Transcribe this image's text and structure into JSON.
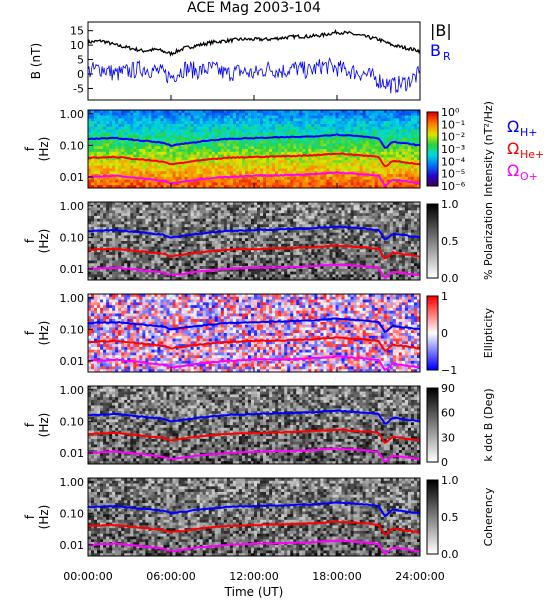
{
  "chart_data": {
    "title": "ACE Mag 2003-104",
    "xlabel": "Time (UT)",
    "x_tick_labels": [
      "00:00:00",
      "06:00:00",
      "12:00:00",
      "18:00:00",
      "24:00:00"
    ],
    "xlim_hours": [
      0,
      24
    ],
    "panels": [
      {
        "type": "line",
        "ylabel": "B (nT)",
        "ylim": [
          -9,
          18
        ],
        "y_ticks": [
          -5,
          0,
          5,
          10,
          15
        ],
        "series": [
          {
            "name": "|B|",
            "color": "#000000",
            "x_hours": [
              0,
              1,
              2,
              3,
              4,
              5,
              6,
              7,
              8,
              9,
              10,
              11,
              12,
              13,
              14,
              15,
              16,
              17,
              18,
              19,
              20,
              21,
              22,
              23,
              24
            ],
            "values": [
              11,
              11.5,
              10,
              9,
              8,
              8.5,
              7,
              9,
              10,
              11,
              11.5,
              12,
              12,
              12,
              12.5,
              13,
              13,
              13.5,
              14.5,
              14,
              13,
              12,
              10,
              9,
              8
            ]
          },
          {
            "name": "B_R",
            "color": "#0000ff",
            "x_hours": [
              0,
              1,
              2,
              3,
              4,
              5,
              6,
              7,
              8,
              9,
              10,
              11,
              12,
              13,
              14,
              15,
              16,
              17,
              18,
              19,
              20,
              21,
              22,
              23,
              24
            ],
            "values": [
              1,
              2,
              0,
              1,
              2,
              1,
              -1,
              2,
              1,
              2,
              0,
              1,
              0,
              2,
              1,
              2,
              1,
              3,
              2,
              1,
              0,
              -2,
              -4,
              -3,
              0
            ]
          }
        ]
      },
      {
        "type": "heatmap",
        "ylabel": "f (Hz)",
        "y_tick_labels": [
          "1.00",
          "0.10",
          "0.01"
        ],
        "colorbar_label": "Intensity (nT²/Hz)",
        "colorbar_ticks": [
          "10⁰",
          "10⁻¹",
          "10⁻²",
          "10⁻³",
          "10⁻⁴",
          "10⁻⁵",
          "10⁻⁶"
        ],
        "colorbar_range": [
          -6,
          0
        ],
        "colorscale": "rainbow"
      },
      {
        "type": "heatmap",
        "ylabel": "f (Hz)",
        "y_tick_labels": [
          "1.00",
          "0.10",
          "0.01"
        ],
        "colorbar_label": "% Polarization",
        "colorbar_ticks": [
          "1.0",
          "0.5",
          "0.0"
        ],
        "colorbar_range": [
          0,
          1
        ],
        "colorscale": "gray"
      },
      {
        "type": "heatmap",
        "ylabel": "f (Hz)",
        "y_tick_labels": [
          "1.00",
          "0.10",
          "0.01"
        ],
        "colorbar_label": "Ellipticity",
        "colorbar_ticks": [
          "1",
          "0",
          "−1"
        ],
        "colorbar_range": [
          -1,
          1
        ],
        "colorscale": "bluewhitered"
      },
      {
        "type": "heatmap",
        "ylabel": "f (Hz)",
        "y_tick_labels": [
          "1.00",
          "0.10",
          "0.01"
        ],
        "colorbar_label": "k dot B (Deg)",
        "colorbar_ticks": [
          "90",
          "60",
          "30",
          "0"
        ],
        "colorbar_range": [
          0,
          90
        ],
        "colorscale": "gray"
      },
      {
        "type": "heatmap",
        "ylabel": "f (Hz)",
        "y_tick_labels": [
          "1.00",
          "0.10",
          "0.01"
        ],
        "colorbar_label": "Coherency",
        "colorbar_ticks": [
          "1.0",
          "0.5",
          "0.0"
        ],
        "colorbar_range": [
          0,
          1
        ],
        "colorscale": "gray"
      }
    ],
    "legends": {
      "top": [
        {
          "label": "|B|",
          "color": "#000000"
        },
        {
          "label": "B",
          "sub": "R",
          "color": "#0000ff"
        }
      ],
      "gyro": [
        {
          "label": "Ω",
          "sub": "H+",
          "color": "#0000ff"
        },
        {
          "label": "Ω",
          "sub": "He+",
          "color": "#ff0000"
        },
        {
          "label": "Ω",
          "sub": "O+",
          "color": "#ff00ff"
        }
      ]
    },
    "gyro_lines": [
      {
        "name": "Ω H+",
        "color": "#0000ff",
        "x_hours": [
          0,
          2,
          4,
          5.5,
          6,
          8,
          10,
          12,
          14,
          16,
          18,
          20,
          21,
          21.5,
          22,
          24
        ],
        "f_hz": [
          0.16,
          0.17,
          0.14,
          0.12,
          0.1,
          0.13,
          0.16,
          0.17,
          0.18,
          0.19,
          0.22,
          0.19,
          0.17,
          0.08,
          0.13,
          0.1
        ]
      },
      {
        "name": "Ω He+",
        "color": "#ff0000",
        "x_hours": [
          0,
          2,
          4,
          5.5,
          6,
          8,
          10,
          12,
          14,
          16,
          18,
          20,
          21,
          21.5,
          22,
          24
        ],
        "f_hz": [
          0.04,
          0.043,
          0.035,
          0.03,
          0.025,
          0.033,
          0.04,
          0.043,
          0.045,
          0.048,
          0.055,
          0.048,
          0.043,
          0.02,
          0.033,
          0.025
        ]
      },
      {
        "name": "Ω O+",
        "color": "#ff00ff",
        "x_hours": [
          0,
          2,
          4,
          5.5,
          6,
          8,
          10,
          12,
          14,
          16,
          18,
          20,
          21,
          21.5,
          22,
          24
        ],
        "f_hz": [
          0.01,
          0.011,
          0.009,
          0.0075,
          0.0063,
          0.0083,
          0.01,
          0.011,
          0.0113,
          0.012,
          0.0138,
          0.012,
          0.0108,
          0.005,
          0.0083,
          0.0063
        ]
      }
    ]
  }
}
